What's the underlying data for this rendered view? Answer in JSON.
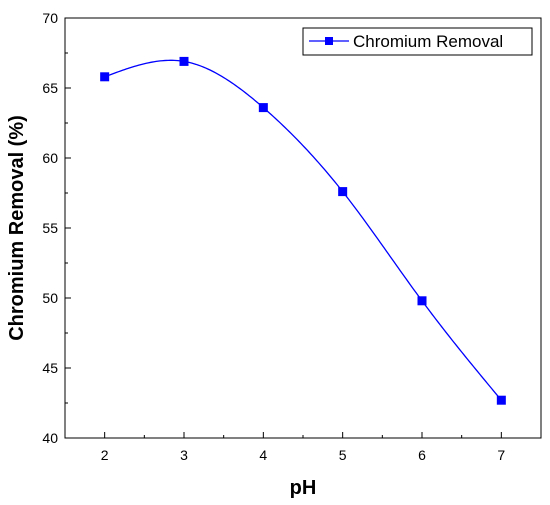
{
  "chart_data": {
    "type": "line",
    "xlabel": "pH",
    "ylabel": "Chromium Removal (%)",
    "xlim": [
      1.5,
      7.5
    ],
    "ylim": [
      40,
      70
    ],
    "xticks": [
      2,
      3,
      4,
      5,
      6,
      7
    ],
    "yticks": [
      40,
      45,
      50,
      55,
      60,
      65,
      70
    ],
    "grid": false,
    "legend_position": "top-right",
    "series": [
      {
        "name": "Chromium Removal",
        "color": "#0000ff",
        "marker": "square",
        "smooth": true,
        "x": [
          2,
          3,
          4,
          5,
          6,
          7
        ],
        "y": [
          65.8,
          66.9,
          63.6,
          57.6,
          49.8,
          42.7
        ]
      }
    ]
  }
}
